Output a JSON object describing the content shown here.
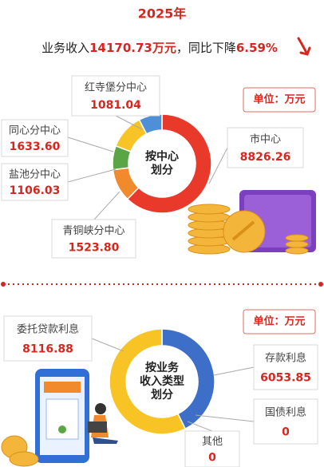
{
  "header": {
    "year": "2025年",
    "summary": {
      "prefix": "业务收入",
      "amount": "14170.73万元",
      "middle": "，同比下降",
      "change": "6.59%"
    }
  },
  "sections": [
    {
      "unit": "单位：万元",
      "center": [
        "按中心",
        "划分"
      ],
      "items": [
        {
          "name": "市中心",
          "value": 8826.26,
          "value_label": "8826.26",
          "color": "#e8392b"
        },
        {
          "name": "青铜峡分中心",
          "value": 1523.8,
          "value_label": "1523.80",
          "color": "#f08a2c"
        },
        {
          "name": "盐池分中心",
          "value": 1106.03,
          "value_label": "1106.03",
          "color": "#5aa546"
        },
        {
          "name": "同心分中心",
          "value": 1633.6,
          "value_label": "1633.60",
          "color": "#f7c325"
        },
        {
          "name": "红寺堡分中心",
          "value": 1081.04,
          "value_label": "1081.04",
          "color": "#4f8fd8"
        }
      ]
    },
    {
      "unit": "单位：万元",
      "center": [
        "按业务",
        "收入类型",
        "划分"
      ],
      "items": [
        {
          "name": "存款利息",
          "value": 6053.85,
          "value_label": "6053.85",
          "color": "#3d6fc9"
        },
        {
          "name": "国债利息",
          "value": 0,
          "value_label": "0",
          "color": "#8fa9d8"
        },
        {
          "name": "其他",
          "value": 0,
          "value_label": "0",
          "color": "#cccccc"
        },
        {
          "name": "委托贷款利息",
          "value": 8116.88,
          "value_label": "8116.88",
          "color": "#f7c325"
        }
      ]
    }
  ]
}
